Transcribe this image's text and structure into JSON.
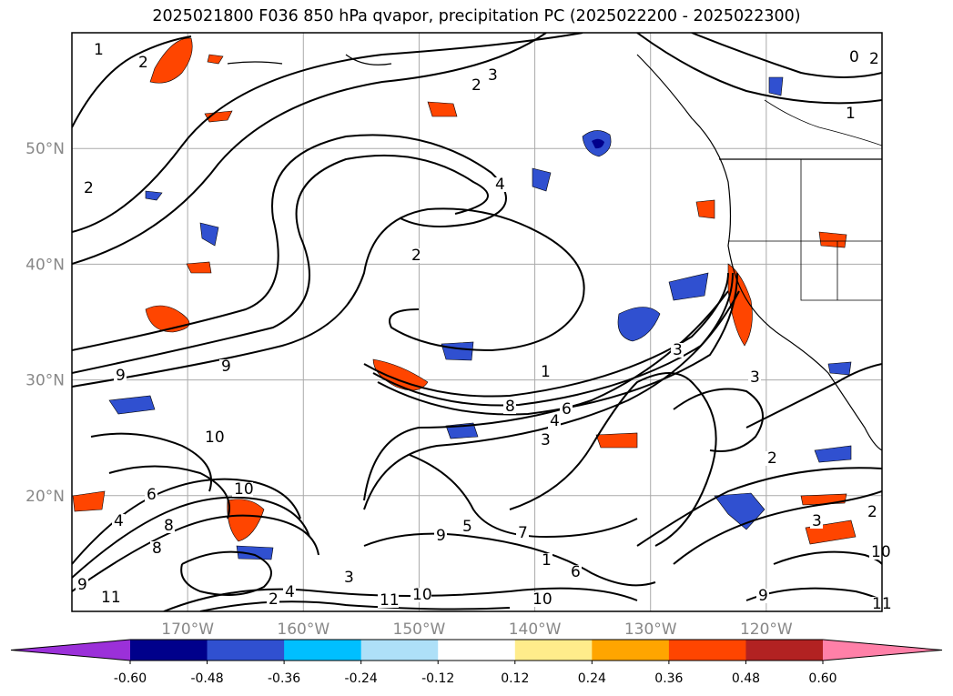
{
  "title": "2025021800 F036 850 hPa qvapor, precipitation PC (2025022200 - 2025022300)",
  "map": {
    "lat_labels": [
      "50°N",
      "40°N",
      "30°N",
      "20°N"
    ],
    "lon_labels": [
      "170°W",
      "160°W",
      "150°W",
      "140°W",
      "130°W",
      "120°W"
    ],
    "contour_labels": [
      "1",
      "2",
      "3",
      "2",
      "0",
      "1",
      "2",
      "4",
      "2",
      "1",
      "8",
      "6",
      "4",
      "3",
      "7",
      "9",
      "9",
      "10",
      "2",
      "9",
      "3",
      "10",
      "8",
      "6",
      "4",
      "3",
      "5",
      "9",
      "7",
      "6",
      "10",
      "11",
      "10",
      "3",
      "4",
      "2",
      "11",
      "1",
      "3",
      "8",
      "2",
      "10",
      "11",
      "9",
      "2"
    ]
  },
  "colorbar": {
    "colors": [
      "#9b30d9",
      "#00008b",
      "#3050d0",
      "#00bfff",
      "#aee0f8",
      "#ffffff",
      "#ffec8b",
      "#ffa500",
      "#ff4500",
      "#b22222",
      "#ff80a8"
    ],
    "tick_labels": [
      "-0.60",
      "-0.48",
      "-0.36",
      "-0.24",
      "-0.12",
      "0.12",
      "0.24",
      "0.36",
      "0.48",
      "0.60"
    ]
  },
  "chart_data": {
    "type": "heatmap",
    "title": "2025021800 F036 850 hPa qvapor, precipitation PC (2025022200 - 2025022300)",
    "xlabel": "",
    "ylabel": "",
    "x_ticks": [
      "170°W",
      "160°W",
      "150°W",
      "140°W",
      "130°W",
      "120°W"
    ],
    "y_ticks": [
      "50°N",
      "40°N",
      "30°N",
      "20°N"
    ],
    "xlim": [
      "180°W",
      "110°W"
    ],
    "ylim": [
      "10°N",
      "60°N"
    ],
    "grid": true,
    "colorbar": {
      "extend": "both",
      "boundaries": [
        -0.6,
        -0.48,
        -0.36,
        -0.24,
        -0.12,
        0.12,
        0.24,
        0.36,
        0.48,
        0.6
      ]
    }
  }
}
